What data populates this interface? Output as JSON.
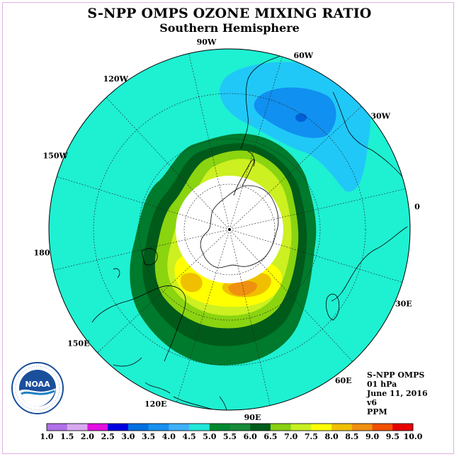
{
  "title": "S-NPP OMPS OZONE MIXING RATIO",
  "subtitle": "Southern Hemisphere",
  "longitude_labels": [
    {
      "text": "90W"
    },
    {
      "text": "60W"
    },
    {
      "text": "30W"
    },
    {
      "text": "0"
    },
    {
      "text": "30E"
    },
    {
      "text": "60E"
    },
    {
      "text": "90E"
    },
    {
      "text": "120E"
    },
    {
      "text": "150E"
    },
    {
      "text": "180"
    },
    {
      "text": "150W"
    },
    {
      "text": "120W"
    }
  ],
  "info": {
    "instrument": "S-NPP OMPS",
    "level": "01 hPa",
    "date": "June 11, 2016",
    "version": "v6",
    "units": "PPM"
  },
  "colorbar": {
    "labels": [
      "1.0",
      "1.5",
      "2.0",
      "2.5",
      "3.0",
      "3.5",
      "4.0",
      "4.5",
      "5.0",
      "5.5",
      "6.0",
      "6.5",
      "7.0",
      "7.5",
      "8.0",
      "8.5",
      "9.0",
      "9.5",
      "10.0"
    ],
    "colors": [
      "#b070e8",
      "#d8a8f0",
      "#e010e0",
      "#0000e0",
      "#0070e0",
      "#1890f0",
      "#40b0f8",
      "#20e8d8",
      "#008830",
      "#188a38",
      "#005c1c",
      "#88d010",
      "#c8f020",
      "#ffff00",
      "#f0c000",
      "#f09010",
      "#f05000",
      "#e80000",
      "#7a4a28"
    ]
  },
  "logo": {
    "text": "NOAA",
    "icon": "noaa-logo-icon"
  }
}
